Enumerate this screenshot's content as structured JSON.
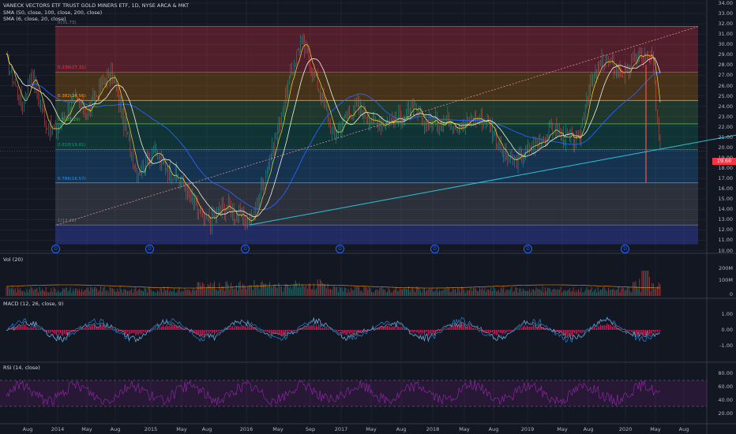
{
  "header": {
    "symbol_line": "VANECK VECTORS ETF TRUST GOLD MINERS ETF, 1D, NYSE ARCA & MKT",
    "sma1": "SMA (50, close, 100, close, 200, close)",
    "sma2": "SMA (6, close, 20, close)"
  },
  "panes": {
    "vol_label": "Vol (20)",
    "macd_label": "MACD (12, 26, close, 9)",
    "rsi_label": "RSI (14, close)"
  },
  "price_axis": [
    "34.00",
    "33.00",
    "32.00",
    "31.00",
    "30.00",
    "29.00",
    "28.00",
    "27.00",
    "26.00",
    "25.00",
    "24.00",
    "23.00",
    "22.00",
    "21.00",
    "20.00",
    "19.00",
    "18.00",
    "17.00",
    "16.00",
    "15.00",
    "14.00",
    "13.00",
    "12.00",
    "11.00",
    "10.00"
  ],
  "last_price": "19.66",
  "vol_axis": [
    "200M",
    "100M",
    "0"
  ],
  "macd_axis": [
    "1.00",
    "0.00",
    "-1.00"
  ],
  "rsi_axis": [
    "80.00",
    "60.00",
    "40.00",
    "20.00"
  ],
  "time_axis": [
    "Aug",
    "2014",
    "May",
    "Aug",
    "2015",
    "May",
    "Aug",
    "2016",
    "May",
    "Sep",
    "2017",
    "May",
    "Aug",
    "2018",
    "May",
    "Aug",
    "2019",
    "May",
    "Aug",
    "2020",
    "May",
    "Aug"
  ],
  "fib_levels": [
    {
      "label": "0(31.73)",
      "price": 31.73,
      "color": "#787b86"
    },
    {
      "label": "0.236(27.31)",
      "price": 27.31,
      "color": "#f23645"
    },
    {
      "label": "0.382(24.56)",
      "price": 24.56,
      "color": "#ff9800"
    },
    {
      "label": "0.5(22.29)",
      "price": 22.29,
      "color": "#4caf50"
    },
    {
      "label": "0.618(19.81)",
      "price": 19.81,
      "color": "#089981"
    },
    {
      "label": "0.786(16.57)",
      "price": 16.57,
      "color": "#2196f3"
    },
    {
      "label": "1(12.48)",
      "price": 12.48,
      "color": "#787b86"
    }
  ],
  "event_markers": [
    "D",
    "D",
    "D",
    "D",
    "D",
    "D",
    "D"
  ],
  "colors": {
    "background": "#131722",
    "grid": "#2a2e39",
    "up": "#26a69a",
    "down": "#ef5350",
    "sma50": "#2962ff",
    "sma6": "#fdd835",
    "sma20": "#f5f5dc",
    "trend": "#26c6da",
    "macd": "#2196f3",
    "signal": "#ff6d00",
    "hist": "#e91e63",
    "rsi": "#9c27b0"
  },
  "chart_data": {
    "type": "line",
    "title": "VANECK VECTORS ETF TRUST GOLD MINERS ETF, 1D, NYSE ARCA & MKT",
    "ylim": [
      10,
      34
    ],
    "series": [
      {
        "name": "close",
        "x": [
          "2013-07",
          "2013-09",
          "2013-10",
          "2013-12",
          "2014-01",
          "2014-03",
          "2014-05",
          "2014-07",
          "2014-08",
          "2014-10",
          "2014-11",
          "2015-01",
          "2015-02",
          "2015-04",
          "2015-05",
          "2015-07",
          "2015-08",
          "2015-10",
          "2015-11",
          "2016-01",
          "2016-02",
          "2016-04",
          "2016-05",
          "2016-07",
          "2016-08",
          "2016-10",
          "2016-11",
          "2017-01",
          "2017-02",
          "2017-04",
          "2017-05",
          "2017-07",
          "2017-09",
          "2017-10",
          "2017-12",
          "2018-01",
          "2018-03",
          "2018-04",
          "2018-06",
          "2018-08",
          "2018-09",
          "2018-11",
          "2018-12",
          "2019-02",
          "2019-03",
          "2019-05",
          "2019-06",
          "2019-08",
          "2019-09",
          "2019-11",
          "2019-12",
          "2020-02",
          "2020-03"
        ],
        "values": [
          28.5,
          24.0,
          27.5,
          22.0,
          21.5,
          24.5,
          23.5,
          26.5,
          27.0,
          20.5,
          17.5,
          19.8,
          18.5,
          17.0,
          16.0,
          13.0,
          13.0,
          14.5,
          13.5,
          12.8,
          15.5,
          21.0,
          24.5,
          30.5,
          28.5,
          24.0,
          21.0,
          23.5,
          24.0,
          22.5,
          22.5,
          22.8,
          23.5,
          22.5,
          22.5,
          22.8,
          22.0,
          23.0,
          22.5,
          19.0,
          18.5,
          20.0,
          20.5,
          21.8,
          21.0,
          20.5,
          25.0,
          28.5,
          28.0,
          27.0,
          29.0,
          28.5,
          20.0
        ]
      }
    ],
    "fib_retracement": {
      "high": 31.73,
      "low": 12.48,
      "levels": [
        0,
        0.236,
        0.382,
        0.5,
        0.618,
        0.786,
        1
      ]
    },
    "last_price": 19.66
  }
}
